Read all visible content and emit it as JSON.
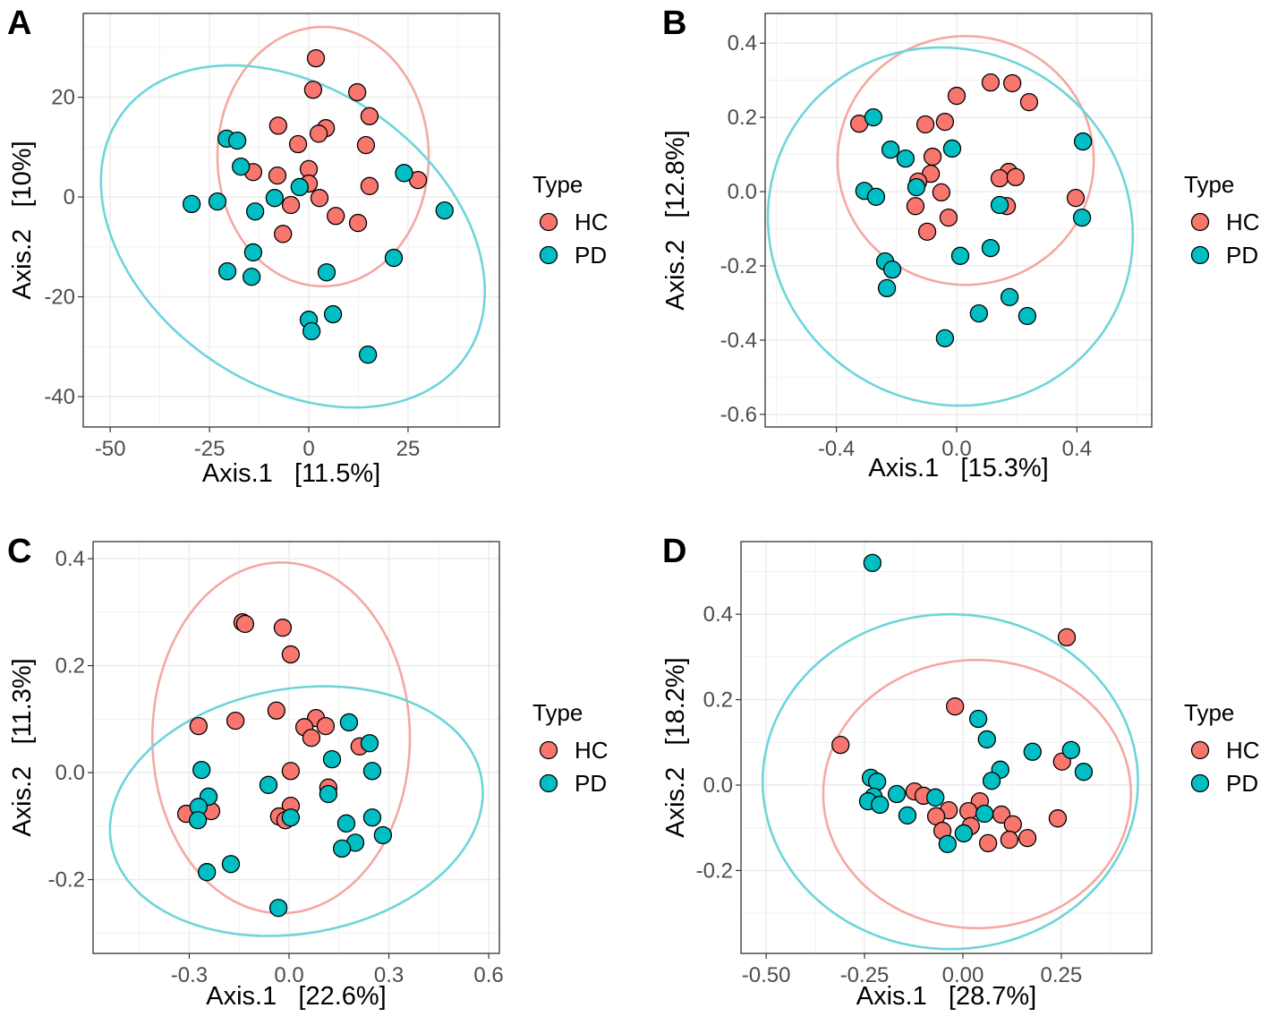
{
  "colors": {
    "HC": "#F8766D",
    "PD": "#00BFC4",
    "HC_ellipse": "#F4A8A2",
    "PD_ellipse": "#6DD5D9"
  },
  "chart_data": [
    {
      "panel": "A",
      "type": "scatter",
      "xlabel": "Axis.1   [11.5%]",
      "ylabel": "Axis.2   [10%]",
      "xlim": [
        -56.8,
        48.0
      ],
      "ylim": [
        -46.1,
        36.8
      ],
      "xticks": [
        -50,
        -25,
        0,
        25
      ],
      "xtick_labels": [
        "-50",
        "-25",
        "0",
        "25"
      ],
      "yticks": [
        -40,
        -20,
        0,
        20
      ],
      "ytick_labels": [
        "-40",
        "-20",
        "0",
        "20"
      ],
      "legend": {
        "title": "Type",
        "entries": [
          "HC",
          "PD"
        ],
        "placement": "right"
      },
      "series": [
        {
          "name": "HC",
          "points": [
            [
              1.8,
              27.8
            ],
            [
              1.1,
              21.5
            ],
            [
              12.2,
              21
            ],
            [
              15.3,
              16.2
            ],
            [
              -7.7,
              14.3
            ],
            [
              4.3,
              13.8
            ],
            [
              2.5,
              12.7
            ],
            [
              -2.7,
              10.6
            ],
            [
              14.4,
              10.4
            ],
            [
              -14,
              5
            ],
            [
              -7.9,
              4.3
            ],
            [
              0,
              5.6
            ],
            [
              0,
              2.7
            ],
            [
              27.5,
              3.4
            ],
            [
              15.3,
              2.2
            ],
            [
              2.7,
              -0.2
            ],
            [
              -4.5,
              -1.6
            ],
            [
              6.8,
              -3.8
            ],
            [
              12.4,
              -5.2
            ],
            [
              -6.5,
              -7.4
            ]
          ],
          "ellipse": {
            "center": [
              3.6,
              8.1
            ],
            "a": [
              26.6,
              0
            ],
            "b": [
              0,
              26.0
            ]
          }
        },
        {
          "name": "PD",
          "points": [
            [
              -20.7,
              11.7
            ],
            [
              -18,
              11.3
            ],
            [
              -17.1,
              6.1
            ],
            [
              -2.3,
              2
            ],
            [
              -8.6,
              -0.2
            ],
            [
              24,
              4.8
            ],
            [
              -29.5,
              -1.4
            ],
            [
              -23,
              -0.9
            ],
            [
              -13.5,
              -2.9
            ],
            [
              34.2,
              -2.7
            ],
            [
              -14,
              -11.1
            ],
            [
              21.4,
              -12.2
            ],
            [
              -20.5,
              -14.9
            ],
            [
              -14.4,
              -16
            ],
            [
              4.5,
              -15.1
            ],
            [
              0,
              -24.6
            ],
            [
              0.7,
              -26.9
            ],
            [
              6.1,
              -23.5
            ],
            [
              14.9,
              -31.6
            ]
          ],
          "ellipse": {
            "center": [
              -4.0,
              -7.9
            ],
            "a": [
              43.4,
              -24.2
            ],
            "b": [
              -21.3,
              -24.3
            ]
          }
        }
      ]
    },
    {
      "panel": "B",
      "type": "scatter",
      "xlabel": "Axis.1   [15.3%]",
      "ylabel": "Axis.2   [12.8%]",
      "xlim": [
        -0.637,
        0.649
      ],
      "ylim": [
        -0.634,
        0.48
      ],
      "xticks": [
        -0.4,
        0.0,
        0.4
      ],
      "xtick_labels": [
        "-0.4",
        "0.0",
        "0.4"
      ],
      "yticks": [
        -0.6,
        -0.4,
        -0.2,
        0.0,
        0.2,
        0.4
      ],
      "ytick_labels": [
        "-0.6",
        "-0.4",
        "-0.2",
        "0.0",
        "0.2",
        "0.4"
      ],
      "legend": {
        "title": "Type",
        "entries": [
          "HC",
          "PD"
        ],
        "placement": "right"
      },
      "series": [
        {
          "name": "HC",
          "points": [
            [
              0.113,
              0.294
            ],
            [
              0.185,
              0.292
            ],
            [
              0,
              0.258
            ],
            [
              0.241,
              0.241
            ],
            [
              -0.324,
              0.183
            ],
            [
              -0.104,
              0.181
            ],
            [
              -0.039,
              0.188
            ],
            [
              -0.08,
              0.094
            ],
            [
              -0.086,
              0.048
            ],
            [
              -0.128,
              0.027
            ],
            [
              0.173,
              0.053
            ],
            [
              0.143,
              0.036
            ],
            [
              0.196,
              0.039
            ],
            [
              0.396,
              -0.017
            ],
            [
              -0.051,
              -0.002
            ],
            [
              -0.137,
              -0.039
            ],
            [
              0.167,
              -0.039
            ],
            [
              -0.027,
              -0.07
            ],
            [
              -0.098,
              -0.108
            ]
          ],
          "ellipse": {
            "center": [
              0.03,
              0.084
            ],
            "a": [
              0.426,
              0
            ],
            "b": [
              0,
              0.335
            ]
          }
        },
        {
          "name": "PD",
          "points": [
            [
              -0.277,
              0.2
            ],
            [
              0.42,
              0.135
            ],
            [
              -0.22,
              0.113
            ],
            [
              -0.015,
              0.116
            ],
            [
              -0.17,
              0.089
            ],
            [
              -0.134,
              0.012
            ],
            [
              -0.307,
              0.002
            ],
            [
              -0.268,
              -0.014
            ],
            [
              0.143,
              -0.036
            ],
            [
              0.417,
              -0.07
            ],
            [
              0.113,
              -0.152
            ],
            [
              0.012,
              -0.173
            ],
            [
              -0.238,
              -0.188
            ],
            [
              -0.214,
              -0.21
            ],
            [
              -0.232,
              -0.26
            ],
            [
              0.176,
              -0.284
            ],
            [
              0.074,
              -0.328
            ],
            [
              0.235,
              -0.335
            ],
            [
              -0.039,
              -0.395
            ]
          ],
          "ellipse": {
            "center": [
              -0.021,
              -0.094
            ],
            "a": [
              0.604,
              -0.072
            ],
            "b": [
              -0.06,
              -0.477
            ]
          }
        }
      ]
    },
    {
      "panel": "C",
      "type": "scatter",
      "xlabel": "Axis.1   [22.6%]",
      "ylabel": "Axis.2   [11.3%]",
      "xlim": [
        -0.589,
        0.632
      ],
      "ylim": [
        -0.338,
        0.432
      ],
      "xticks": [
        -0.3,
        0.0,
        0.3,
        0.6
      ],
      "xtick_labels": [
        "-0.3",
        "0.0",
        "0.3",
        "0.6"
      ],
      "yticks": [
        -0.2,
        0.0,
        0.2,
        0.4
      ],
      "ytick_labels": [
        "-0.2",
        "0.0",
        "0.2",
        "0.4"
      ],
      "legend": {
        "title": "Type",
        "entries": [
          "HC",
          "PD"
        ],
        "placement": "right"
      },
      "series": [
        {
          "name": "HC",
          "points": [
            [
              -0.14,
              0.281
            ],
            [
              -0.132,
              0.278
            ],
            [
              -0.019,
              0.271
            ],
            [
              0.005,
              0.221
            ],
            [
              -0.038,
              0.116
            ],
            [
              -0.272,
              0.087
            ],
            [
              -0.161,
              0.097
            ],
            [
              0.081,
              0.102
            ],
            [
              0.046,
              0.085
            ],
            [
              0.11,
              0.087
            ],
            [
              0.067,
              0.065
            ],
            [
              0.212,
              0.049
            ],
            [
              0.005,
              0.003
            ],
            [
              0.118,
              -0.028
            ],
            [
              -0.309,
              -0.077
            ],
            [
              -0.234,
              -0.072
            ],
            [
              0.005,
              -0.062
            ],
            [
              -0.03,
              -0.082
            ],
            [
              -0.011,
              -0.089
            ]
          ],
          "ellipse": {
            "center": [
              -0.024,
              0.065
            ],
            "a": [
              0.387,
              0
            ],
            "b": [
              0,
              0.328
            ]
          }
        },
        {
          "name": "PD",
          "points": [
            [
              0.18,
              0.094
            ],
            [
              0.242,
              0.055
            ],
            [
              0.129,
              0.025
            ],
            [
              -0.263,
              0.005
            ],
            [
              0.25,
              0.003
            ],
            [
              -0.062,
              -0.023
            ],
            [
              0.118,
              -0.04
            ],
            [
              -0.242,
              -0.045
            ],
            [
              -0.272,
              -0.064
            ],
            [
              -0.274,
              -0.089
            ],
            [
              0.005,
              -0.084
            ],
            [
              0.25,
              -0.084
            ],
            [
              0.172,
              -0.095
            ],
            [
              0.282,
              -0.117
            ],
            [
              0.199,
              -0.131
            ],
            [
              0.159,
              -0.142
            ],
            [
              -0.175,
              -0.171
            ],
            [
              -0.247,
              -0.186
            ],
            [
              -0.032,
              -0.253
            ]
          ],
          "ellipse": {
            "center": [
              0.022,
              -0.072
            ],
            "a": [
              0.559,
              0.05
            ],
            "b": [
              0.038,
              -0.228
            ]
          }
        }
      ]
    },
    {
      "panel": "D",
      "type": "scatter",
      "xlabel": "Axis.1   [28.7%]",
      "ylabel": "Axis.2   [18.2%]",
      "xlim": [
        -0.564,
        0.48
      ],
      "ylim": [
        -0.394,
        0.57
      ],
      "xticks": [
        -0.5,
        -0.25,
        0.0,
        0.25
      ],
      "xtick_labels": [
        "-0.50",
        "-0.25",
        "0.00",
        "0.25"
      ],
      "yticks": [
        -0.2,
        0.0,
        0.2,
        0.4
      ],
      "ytick_labels": [
        "-0.2",
        "0.0",
        "0.2",
        "0.4"
      ],
      "legend": {
        "title": "Type",
        "entries": [
          "HC",
          "PD"
        ],
        "placement": "right"
      },
      "series": [
        {
          "name": "HC",
          "points": [
            [
              0.264,
              0.346
            ],
            [
              -0.02,
              0.184
            ],
            [
              -0.311,
              0.094
            ],
            [
              0.252,
              0.055
            ],
            [
              -0.123,
              -0.015
            ],
            [
              -0.1,
              -0.025
            ],
            [
              -0.036,
              -0.059
            ],
            [
              0.043,
              -0.038
            ],
            [
              -0.068,
              -0.073
            ],
            [
              0.014,
              -0.061
            ],
            [
              0.098,
              -0.069
            ],
            [
              0.241,
              -0.078
            ],
            [
              0.127,
              -0.092
            ],
            [
              -0.052,
              -0.107
            ],
            [
              0.02,
              -0.096
            ],
            [
              0.118,
              -0.128
            ],
            [
              0.064,
              -0.136
            ],
            [
              0.164,
              -0.124
            ]
          ],
          "ellipse": {
            "center": [
              0.036,
              -0.021
            ],
            "a": [
              0.391,
              0
            ],
            "b": [
              0,
              0.314
            ]
          }
        },
        {
          "name": "PD",
          "points": [
            [
              -0.23,
              0.52
            ],
            [
              0.039,
              0.155
            ],
            [
              0.061,
              0.107
            ],
            [
              0.275,
              0.082
            ],
            [
              0.177,
              0.078
            ],
            [
              0.307,
              0.031
            ],
            [
              0.095,
              0.036
            ],
            [
              0.073,
              0.01
            ],
            [
              -0.234,
              0.017
            ],
            [
              -0.218,
              0.008
            ],
            [
              -0.168,
              -0.021
            ],
            [
              -0.227,
              -0.027
            ],
            [
              -0.241,
              -0.038
            ],
            [
              -0.211,
              -0.046
            ],
            [
              -0.07,
              -0.029
            ],
            [
              -0.141,
              -0.071
            ],
            [
              0.055,
              -0.067
            ],
            [
              0.002,
              -0.113
            ],
            [
              -0.039,
              -0.138
            ]
          ],
          "ellipse": {
            "center": [
              -0.032,
              0.008
            ],
            "a": [
              0.477,
              0
            ],
            "b": [
              0,
              0.392
            ]
          }
        }
      ]
    }
  ]
}
